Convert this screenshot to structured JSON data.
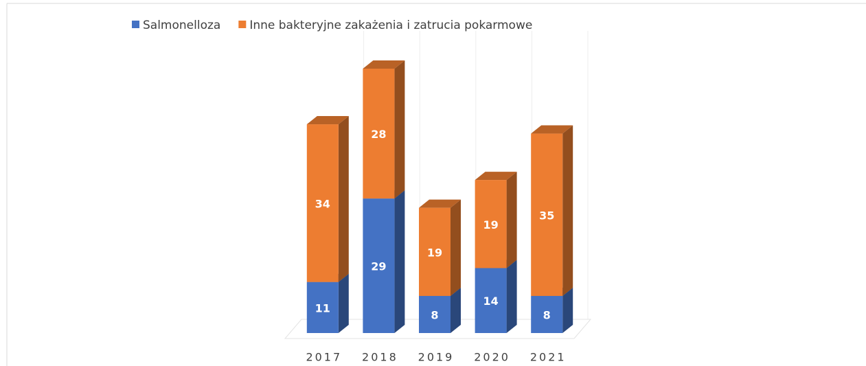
{
  "chart_data": {
    "type": "bar3d_stacked",
    "categories": [
      "2017",
      "2018",
      "2019",
      "2020",
      "2021"
    ],
    "series": [
      {
        "name": "Salmonelloza",
        "color": "#4472c4",
        "values": [
          11,
          29,
          8,
          14,
          8
        ]
      },
      {
        "name": "Inne bakteryjne zakażenia i zatrucia pokarmowe",
        "color": "#ed7d31",
        "values": [
          34,
          28,
          19,
          19,
          35
        ]
      }
    ],
    "legend": "top"
  }
}
